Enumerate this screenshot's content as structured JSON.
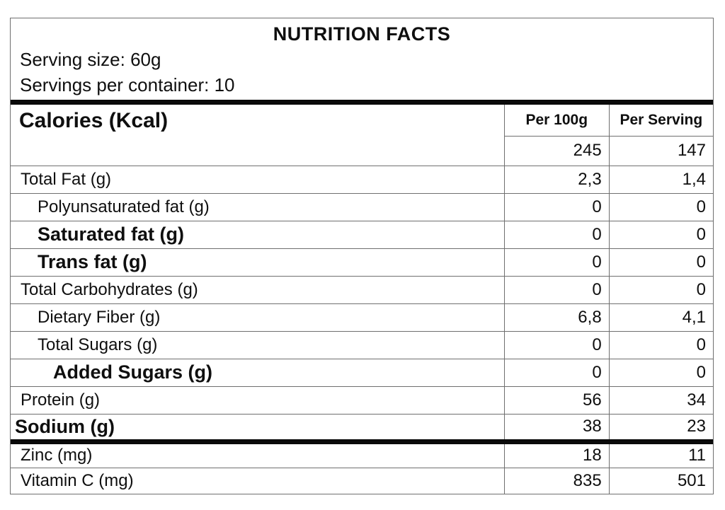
{
  "header": {
    "title": "NUTRITION FACTS",
    "serving_size": "Serving size: 60g",
    "servings_per_container": "Servings per container: 10"
  },
  "table": {
    "calories_label": "Calories (Kcal)",
    "columns": [
      "Per 100g",
      "Per Serving"
    ],
    "calories_values": {
      "per_100g": "245",
      "per_serving": "147"
    },
    "rows": [
      {
        "label": "Total Fat (g)",
        "per_100g": "2,3",
        "per_serving": "1,4",
        "bold": false,
        "indent": 1,
        "thick_top": false,
        "short": false
      },
      {
        "label": "Polyunsaturated fat (g)",
        "per_100g": "0",
        "per_serving": "0",
        "bold": false,
        "indent": 2,
        "thick_top": false,
        "short": false
      },
      {
        "label": "Saturated fat (g)",
        "per_100g": "0",
        "per_serving": "0",
        "bold": true,
        "indent": 2,
        "thick_top": false,
        "short": false
      },
      {
        "label": "Trans fat (g)",
        "per_100g": "0",
        "per_serving": "0",
        "bold": true,
        "indent": 2,
        "thick_top": false,
        "short": false
      },
      {
        "label": "Total Carbohydrates (g)",
        "per_100g": "0",
        "per_serving": "0",
        "bold": false,
        "indent": 1,
        "thick_top": false,
        "short": false
      },
      {
        "label": "Dietary Fiber (g)",
        "per_100g": "6,8",
        "per_serving": "4,1",
        "bold": false,
        "indent": 2,
        "thick_top": false,
        "short": false
      },
      {
        "label": "Total Sugars (g)",
        "per_100g": "0",
        "per_serving": "0",
        "bold": false,
        "indent": 2,
        "thick_top": false,
        "short": false
      },
      {
        "label": "Added Sugars (g)",
        "per_100g": "0",
        "per_serving": "0",
        "bold": true,
        "indent": 3,
        "thick_top": false,
        "short": false
      },
      {
        "label": "Protein (g)",
        "per_100g": "56",
        "per_serving": "34",
        "bold": false,
        "indent": 1,
        "thick_top": false,
        "short": false
      },
      {
        "label": "Sodium (g)",
        "per_100g": "38",
        "per_serving": "23",
        "bold": true,
        "indent": 0,
        "thick_top": false,
        "short": false
      },
      {
        "label": "Zinc (mg)",
        "per_100g": "18",
        "per_serving": "11",
        "bold": false,
        "indent": 1,
        "thick_top": true,
        "short": true
      },
      {
        "label": "Vitamin C (mg)",
        "per_100g": "835",
        "per_serving": "501",
        "bold": false,
        "indent": 1,
        "thick_top": false,
        "short": true
      }
    ]
  },
  "colors": {
    "text": "#0f0f0f",
    "thin_border": "#6f6f6f",
    "thick_bar": "#0a0a0a",
    "background": "#ffffff"
  }
}
